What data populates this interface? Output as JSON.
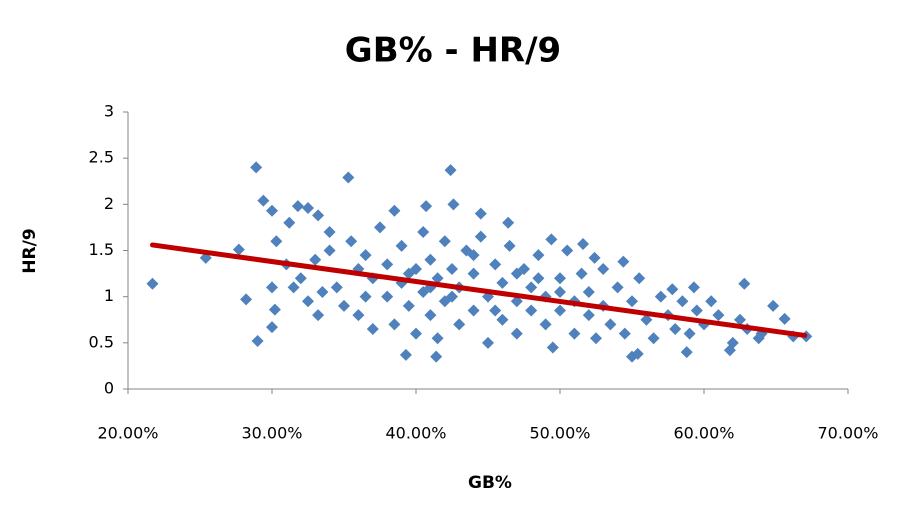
{
  "chart_data": {
    "type": "scatter",
    "title": "GB% - HR/9",
    "xlabel": "GB%",
    "ylabel": "HR/9",
    "color": "#4f81bd",
    "x": [
      21.7,
      25.4,
      27.7,
      28.2,
      28.9,
      29.0,
      29.4,
      30.0,
      30.0,
      30.2,
      30.0,
      31.8,
      32.5,
      33.2,
      35.3,
      42.4,
      42.6,
      39.3,
      41.4,
      55.0,
      55.4,
      58.8,
      62.8,
      64.8,
      65.6,
      66.2,
      67.1,
      61.8,
      63.8,
      60.5,
      59.3,
      57.8,
      52.4,
      54.4,
      51.6,
      49.4,
      46.4,
      44.5,
      40.7,
      38.5,
      33.2,
      31.2,
      30.3,
      34,
      34.5,
      35,
      35.5,
      36,
      36,
      36.5,
      37,
      37,
      37.5,
      38,
      38,
      38.5,
      39,
      39,
      39.5,
      40,
      40,
      40.5,
      40.5,
      41,
      41,
      41.5,
      41.5,
      42,
      42,
      42.5,
      43,
      43,
      43.5,
      44,
      44,
      44.5,
      45,
      45,
      45.5,
      46,
      46,
      46.5,
      47,
      47,
      47.5,
      48,
      48,
      48.5,
      49,
      49,
      49.5,
      50,
      50,
      50.5,
      51,
      51,
      51.5,
      52,
      52,
      52.5,
      53,
      53,
      53.5,
      54,
      54.5,
      55,
      55.5,
      56,
      56.5,
      57,
      57.5,
      58,
      58.5,
      59,
      59.5,
      60,
      61,
      62,
      62.5,
      63,
      64,
      33,
      33.5,
      32,
      32.5,
      31,
      31.5,
      34,
      36.5,
      39.5,
      42.5,
      45.5,
      48.5,
      44,
      41,
      47,
      50
    ],
    "values": [
      1.14,
      1.42,
      1.51,
      0.97,
      2.4,
      0.52,
      2.04,
      1.93,
      0.67,
      0.86,
      1.1,
      1.98,
      1.96,
      0.8,
      2.29,
      2.37,
      2.0,
      0.37,
      0.35,
      0.35,
      0.38,
      0.4,
      1.14,
      0.9,
      0.76,
      0.57,
      0.57,
      0.42,
      0.55,
      0.95,
      1.1,
      1.08,
      1.42,
      1.38,
      1.57,
      1.62,
      1.8,
      1.9,
      1.98,
      1.93,
      1.88,
      1.8,
      1.6,
      1.5,
      1.1,
      0.9,
      1.6,
      1.3,
      0.8,
      1.45,
      1.2,
      0.65,
      1.75,
      1.0,
      1.35,
      0.7,
      1.55,
      1.15,
      0.9,
      1.3,
      0.6,
      1.7,
      1.05,
      1.4,
      0.8,
      1.2,
      0.55,
      1.6,
      0.95,
      1.3,
      1.1,
      0.7,
      1.5,
      0.85,
      1.25,
      1.65,
      1.0,
      0.5,
      1.35,
      0.75,
      1.15,
      1.55,
      0.95,
      0.6,
      1.3,
      0.85,
      1.1,
      1.45,
      0.7,
      1.0,
      0.45,
      1.2,
      0.85,
      1.5,
      0.95,
      0.6,
      1.25,
      0.8,
      1.05,
      0.55,
      1.3,
      0.9,
      0.7,
      1.1,
      0.6,
      0.95,
      1.2,
      0.75,
      0.55,
      1.0,
      0.8,
      0.65,
      0.95,
      0.6,
      0.85,
      0.7,
      0.8,
      0.5,
      0.75,
      0.65,
      0.6,
      1.4,
      1.05,
      1.2,
      0.95,
      1.35,
      1.1,
      1.7,
      1.0,
      1.25,
      1.0,
      0.85,
      1.2,
      1.45,
      1.1,
      1.25,
      1.05
    ],
    "trendline": {
      "x": [
        21.7,
        67
      ],
      "y": [
        1.56,
        0.58
      ],
      "color": "#c00000"
    },
    "xlim": [
      20,
      70
    ],
    "xticks": [
      {
        "value": 20,
        "label": "20.00%"
      },
      {
        "value": 30,
        "label": "30.00%"
      },
      {
        "value": 40,
        "label": "40.00%"
      },
      {
        "value": 50,
        "label": "50.00%"
      },
      {
        "value": 60,
        "label": "60.00%"
      },
      {
        "value": 70,
        "label": "70.00%"
      }
    ],
    "ylim": [
      0,
      3
    ],
    "yticks": [
      0,
      0.5,
      1,
      1.5,
      2,
      2.5,
      3
    ],
    "grid": false
  }
}
